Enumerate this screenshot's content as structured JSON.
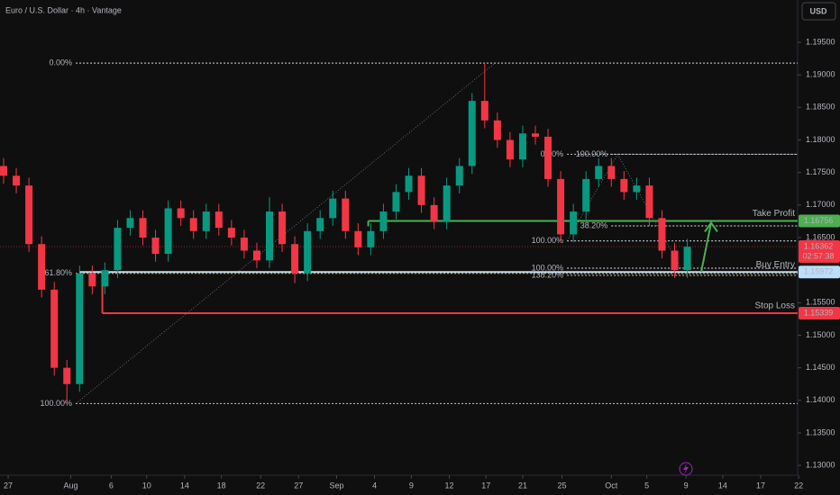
{
  "chart_data": {
    "type": "candlestick",
    "title": "Euro / U.S. Dollar · 4h · Vantage",
    "currency": "USD",
    "up_color": "#089981",
    "down_color": "#f23645",
    "xlim": [
      0,
      63
    ],
    "xticks": [
      {
        "value": 0.36,
        "label": "27"
      },
      {
        "value": 5.3,
        "label": "Aug"
      },
      {
        "value": 8.5,
        "label": "6"
      },
      {
        "value": 11.3,
        "label": "10"
      },
      {
        "value": 14.3,
        "label": "14"
      },
      {
        "value": 17.2,
        "label": "18"
      },
      {
        "value": 20.3,
        "label": "22"
      },
      {
        "value": 23.3,
        "label": "27"
      },
      {
        "value": 26.3,
        "label": "Sep"
      },
      {
        "value": 29.3,
        "label": "4"
      },
      {
        "value": 32.2,
        "label": "9"
      },
      {
        "value": 35.2,
        "label": "12"
      },
      {
        "value": 38.1,
        "label": "17"
      },
      {
        "value": 41,
        "label": "21"
      },
      {
        "value": 44.1,
        "label": "25"
      },
      {
        "value": 48,
        "label": "Oct"
      },
      {
        "value": 50.8,
        "label": "5"
      },
      {
        "value": 53.9,
        "label": "9"
      },
      {
        "value": 56.8,
        "label": "14"
      },
      {
        "value": 59.8,
        "label": "17"
      },
      {
        "value": 62.8,
        "label": "22"
      }
    ],
    "ylim": [
      1.1285,
      1.2015
    ],
    "yticks": [
      {
        "value": 1.195,
        "label": "1.19500"
      },
      {
        "value": 1.19,
        "label": "1.19000"
      },
      {
        "value": 1.185,
        "label": "1.18500"
      },
      {
        "value": 1.18,
        "label": "1.18000"
      },
      {
        "value": 1.175,
        "label": "1.17500"
      },
      {
        "value": 1.17,
        "label": "1.17000"
      },
      {
        "value": 1.165,
        "label": "1.16500"
      },
      {
        "value": 1.16,
        "label": "1.16000"
      },
      {
        "value": 1.155,
        "label": "1.15500"
      },
      {
        "value": 1.15,
        "label": "1.15000"
      },
      {
        "value": 1.145,
        "label": "1.14500"
      },
      {
        "value": 1.14,
        "label": "1.14000"
      },
      {
        "value": 1.135,
        "label": "1.13500"
      },
      {
        "value": 1.13,
        "label": "1.13000"
      }
    ],
    "open": [
      1.176,
      1.1745,
      1.173,
      1.164,
      1.157,
      1.145,
      1.1425,
      1.1595,
      1.1575,
      1.16,
      1.1665,
      1.168,
      1.165,
      1.1625,
      1.1695,
      1.168,
      1.166,
      1.169,
      1.1665,
      1.165,
      1.163,
      1.1615,
      1.169,
      1.164,
      1.1595,
      1.166,
      1.168,
      1.171,
      1.166,
      1.1635,
      1.166,
      1.169,
      1.172,
      1.1745,
      1.17,
      1.1675,
      1.173,
      1.176,
      1.186,
      1.183,
      1.18,
      1.177,
      1.181,
      1.1805,
      1.174,
      1.1655,
      1.169,
      1.174,
      1.176,
      1.174,
      1.172,
      1.173,
      1.168,
      1.163,
      1.16
    ],
    "high": [
      1.1772,
      1.1757,
      1.1742,
      1.1652,
      1.1582,
      1.1462,
      1.1607,
      1.1607,
      1.1612,
      1.1677,
      1.1692,
      1.1692,
      1.1662,
      1.1707,
      1.1707,
      1.1692,
      1.1702,
      1.1702,
      1.1677,
      1.1662,
      1.1642,
      1.1712,
      1.1702,
      1.1652,
      1.1672,
      1.1692,
      1.1722,
      1.1722,
      1.1672,
      1.1672,
      1.1702,
      1.1732,
      1.1757,
      1.1757,
      1.1712,
      1.1742,
      1.1772,
      1.1872,
      1.1918,
      1.1842,
      1.1812,
      1.1822,
      1.1822,
      1.1817,
      1.1752,
      1.1702,
      1.1752,
      1.1772,
      1.1772,
      1.1752,
      1.1742,
      1.1742,
      1.1692,
      1.1642,
      1.1648
    ],
    "low": [
      1.1733,
      1.1718,
      1.1628,
      1.1558,
      1.1438,
      1.1395,
      1.1413,
      1.1563,
      1.1563,
      1.1588,
      1.1653,
      1.1638,
      1.1613,
      1.1613,
      1.1668,
      1.1648,
      1.1648,
      1.1653,
      1.1638,
      1.1618,
      1.1603,
      1.1603,
      1.1628,
      1.158,
      1.1583,
      1.1648,
      1.1668,
      1.1648,
      1.1623,
      1.1623,
      1.1648,
      1.1678,
      1.1708,
      1.1688,
      1.1663,
      1.1663,
      1.1718,
      1.1748,
      1.1818,
      1.1788,
      1.1758,
      1.1758,
      1.1793,
      1.1728,
      1.1643,
      1.1643,
      1.1678,
      1.1728,
      1.1728,
      1.1708,
      1.1708,
      1.1668,
      1.1618,
      1.1588,
      1.1588
    ],
    "close": [
      1.1745,
      1.173,
      1.164,
      1.157,
      1.145,
      1.1425,
      1.1595,
      1.1575,
      1.16,
      1.1665,
      1.168,
      1.165,
      1.1625,
      1.1695,
      1.168,
      1.166,
      1.169,
      1.1665,
      1.165,
      1.163,
      1.1615,
      1.169,
      1.164,
      1.1595,
      1.166,
      1.168,
      1.171,
      1.166,
      1.1635,
      1.166,
      1.169,
      1.172,
      1.1745,
      1.17,
      1.1675,
      1.173,
      1.176,
      1.186,
      1.183,
      1.18,
      1.177,
      1.181,
      1.1805,
      1.174,
      1.1655,
      1.169,
      1.174,
      1.176,
      1.174,
      1.172,
      1.173,
      1.168,
      1.163,
      1.16,
      1.1636
    ],
    "fib_levels": [
      {
        "label": "0.00%",
        "price": 1.1918,
        "x": 5.7
      },
      {
        "label": "61.80%",
        "price": 1.1595,
        "x": 5.7
      },
      {
        "label": "100.00%",
        "price": 1.1395,
        "x": 5.7
      },
      {
        "label": "0.00%",
        "price": 1.1778,
        "x": 44.5
      },
      {
        "label": "100.00%",
        "price": 1.1778,
        "x": 48
      },
      {
        "label": "38.20%",
        "price": 1.1668,
        "x": 48
      },
      {
        "label": "100.00%",
        "price": 1.1645,
        "x": 44.5
      },
      {
        "label": "100.00%",
        "price": 1.1603,
        "x": 44.5
      },
      {
        "label": "138.20%",
        "price": 1.1592,
        "x": 44.5
      }
    ],
    "levels": [
      {
        "name": "Take Profit",
        "price": {
          "value": 1.16756,
          "label": "1.16756"
        },
        "color": "#4caf50",
        "x": 28.8
      },
      {
        "name": "Buy Entry",
        "price": {
          "value": 1.15972,
          "label": "1.15972"
        },
        "color": "#bbdefb",
        "x": 6
      },
      {
        "name": "Stop Loss",
        "price": {
          "value": 1.15339,
          "label": "1.15339"
        },
        "color": "#f23645",
        "x": 7.8
      }
    ],
    "last_price": {
      "value": 1.16362,
      "label": "1.16362"
    },
    "countdown": "02:57:38"
  }
}
